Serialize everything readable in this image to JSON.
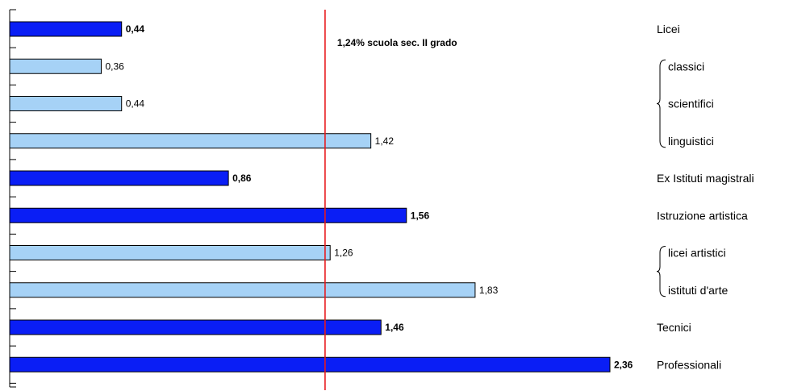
{
  "chart_data": {
    "type": "bar",
    "orientation": "horizontal",
    "categories": [
      "Licei",
      "classici",
      "scientifici",
      "linguistici",
      "Ex Istituti magistrali",
      "Istruzione artistica",
      "licei artistici",
      "istituti d'arte",
      "Tecnici",
      "Professionali"
    ],
    "values": [
      0.44,
      0.36,
      0.44,
      1.42,
      0.86,
      1.56,
      1.26,
      1.83,
      1.46,
      2.36
    ],
    "value_labels": [
      "0,44",
      "0,36",
      "0,44",
      "1,42",
      "0,86",
      "1,56",
      "1,26",
      "1,83",
      "1,46",
      "2,36"
    ],
    "level": [
      "main",
      "sub",
      "sub",
      "sub",
      "main",
      "main",
      "sub",
      "sub",
      "main",
      "main"
    ],
    "xlim": [
      0,
      2.36
    ],
    "reference_line": {
      "value": 1.24,
      "label": "1,24% scuola sec. II grado",
      "color": "#e8191c"
    },
    "colors": {
      "main": "#0a1ef5",
      "sub": "#a6d2f6",
      "border": "#000000"
    },
    "grid": false,
    "title": "",
    "xlabel": "",
    "ylabel": ""
  }
}
